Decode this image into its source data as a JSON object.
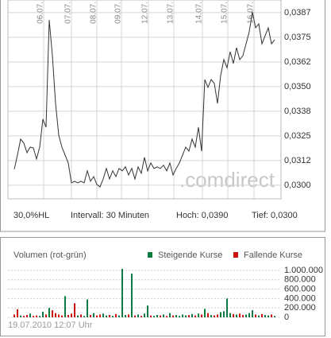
{
  "chart_data": [
    {
      "type": "line",
      "x": [
        0,
        1,
        2,
        3,
        4,
        5,
        6,
        7,
        8,
        9,
        10,
        11,
        12,
        13,
        14,
        15,
        16,
        17,
        18,
        19,
        20,
        21,
        22,
        23,
        24,
        25,
        26,
        27,
        28,
        29,
        30,
        31,
        32,
        33,
        34,
        35,
        36,
        37,
        38,
        39,
        40,
        41,
        42,
        43,
        44,
        45,
        46,
        47,
        48,
        49,
        50,
        51,
        52,
        53,
        54,
        55,
        56,
        57,
        58,
        59,
        60,
        61,
        62,
        63,
        64,
        65,
        66,
        67,
        68,
        69,
        70,
        71,
        72,
        73,
        74,
        75,
        76,
        77,
        78,
        79,
        80,
        81,
        82
      ],
      "values": [
        0.03081,
        0.03153,
        0.03234,
        0.03214,
        0.03165,
        0.03193,
        0.03189,
        0.03133,
        0.03193,
        0.03335,
        0.03294,
        0.03838,
        0.03657,
        0.03415,
        0.03254,
        0.03193,
        0.03153,
        0.03113,
        0.03012,
        0.0302,
        0.03012,
        0.0302,
        0.03012,
        0.03073,
        0.0302,
        0.03044,
        0.03004,
        0.02992,
        0.03032,
        0.03085,
        0.03032,
        0.03073,
        0.03044,
        0.03085,
        0.03073,
        0.03093,
        0.03052,
        0.03085,
        0.03032,
        0.03093,
        0.0306,
        0.03141,
        0.03073,
        0.03113,
        0.03085,
        0.03093,
        0.03085,
        0.03101,
        0.03073,
        0.03113,
        0.03052,
        0.03085,
        0.03113,
        0.03153,
        0.03193,
        0.03173,
        0.03234,
        0.03193,
        0.03294,
        0.03173,
        0.03536,
        0.03496,
        0.03536,
        0.03516,
        0.03415,
        0.03556,
        0.03637,
        0.03596,
        0.03677,
        0.03617,
        0.03697,
        0.03637,
        0.03657,
        0.03717,
        0.03778,
        0.03879,
        0.03798,
        0.03818,
        0.03717,
        0.03758,
        0.03798,
        0.03717,
        0.03737
      ],
      "color": "#333333",
      "xlim": [
        -2,
        84
      ],
      "xticks": [
        {
          "value": 9.25,
          "label": "06.07."
        },
        {
          "value": 18,
          "label": "07.07."
        },
        {
          "value": 26,
          "label": "08.07."
        },
        {
          "value": 33.75,
          "label": "09.07."
        },
        {
          "value": 42.25,
          "label": "12.07."
        },
        {
          "value": 50.25,
          "label": "13.07."
        },
        {
          "value": 59.25,
          "label": "14.07."
        },
        {
          "value": 67.25,
          "label": "15.07."
        },
        {
          "value": 75.5,
          "label": "16.07."
        }
      ],
      "ylim": [
        0.02931,
        0.03939
      ],
      "yticks": [
        {
          "value": 0.03875,
          "label": "0,0387"
        },
        {
          "value": 0.0375,
          "label": "0,0375"
        },
        {
          "value": 0.03625,
          "label": "0,0362"
        },
        {
          "value": 0.035,
          "label": "0,0350"
        },
        {
          "value": 0.03375,
          "label": "0,0338"
        },
        {
          "value": 0.0325,
          "label": "0,0325"
        },
        {
          "value": 0.03125,
          "label": "0,0312"
        },
        {
          "value": 0.03,
          "label": "0,0300"
        }
      ],
      "grid": true,
      "watermark": ".comdirect",
      "annotations": [
        "30,0%HL",
        "Intervall: 30 Minuten",
        "Hoch: 0,0390",
        "Tief: 0,0300"
      ]
    },
    {
      "type": "bar",
      "title": "Volumen (rot-grün)",
      "x": [
        0,
        1,
        2,
        3,
        4,
        5,
        6,
        7,
        8,
        9,
        10,
        11,
        12,
        13,
        14,
        15,
        16,
        17,
        18,
        19,
        20,
        21,
        22,
        23,
        24,
        25,
        26,
        27,
        28,
        29,
        30,
        31,
        32,
        33,
        34,
        35,
        36,
        37,
        38,
        39,
        40,
        41,
        42,
        43,
        44,
        45,
        46,
        47,
        48,
        49,
        50,
        51,
        52,
        53,
        54,
        55,
        56,
        57,
        58,
        59,
        60,
        61,
        62,
        63,
        64,
        65,
        66,
        67,
        68,
        69,
        70,
        71,
        72,
        73,
        74,
        75,
        76,
        77,
        78,
        79,
        80,
        81,
        82
      ],
      "xlim": [
        -2,
        84
      ],
      "series": [
        {
          "name": "Steigende Kurse",
          "color": "#0b7a40",
          "values": [
            null,
            null,
            40000,
            null,
            null,
            80000,
            null,
            null,
            30000,
            120000,
            null,
            200000,
            null,
            null,
            null,
            null,
            450000,
            null,
            null,
            null,
            40000,
            null,
            30000,
            380000,
            null,
            90000,
            null,
            null,
            80000,
            40000,
            null,
            30000,
            null,
            40000,
            1030000,
            50000,
            null,
            930000,
            null,
            60000,
            null,
            80000,
            250000,
            null,
            30000,
            50000,
            null,
            60000,
            null,
            90000,
            null,
            50000,
            30000,
            60000,
            40000,
            null,
            70000,
            null,
            80000,
            null,
            180000,
            null,
            50000,
            null,
            null,
            110000,
            130000,
            400000,
            90000,
            null,
            60000,
            null,
            null,
            60000,
            90000,
            150000,
            null,
            40000,
            null,
            50000,
            40000,
            null,
            30000
          ]
        },
        {
          "name": "Fallende Kurse",
          "color": "#cc1111",
          "values": [
            60000,
            170000,
            null,
            30000,
            50000,
            null,
            30000,
            40000,
            null,
            null,
            60000,
            null,
            150000,
            90000,
            60000,
            40000,
            null,
            50000,
            80000,
            300000,
            null,
            60000,
            null,
            null,
            50000,
            null,
            40000,
            60000,
            null,
            null,
            50000,
            null,
            70000,
            null,
            null,
            null,
            60000,
            null,
            40000,
            null,
            30000,
            null,
            null,
            40000,
            null,
            null,
            40000,
            null,
            30000,
            null,
            40000,
            null,
            null,
            null,
            null,
            50000,
            null,
            40000,
            null,
            60000,
            null,
            90000,
            null,
            40000,
            60000,
            null,
            null,
            null,
            null,
            70000,
            null,
            80000,
            50000,
            null,
            null,
            null,
            60000,
            null,
            70000,
            null,
            null,
            60000,
            null
          ]
        }
      ],
      "ylim": [
        0,
        1100000
      ],
      "yticks": [
        {
          "value": 1000000,
          "label": "1.000.000"
        },
        {
          "value": 800000,
          "label": "800.000"
        },
        {
          "value": 600000,
          "label": "600.000"
        },
        {
          "value": 400000,
          "label": "400.000"
        },
        {
          "value": 200000,
          "label": "200.000"
        },
        0
      ],
      "grid": true,
      "annotations": [
        "19.07.2010 12:07 Uhr"
      ]
    }
  ]
}
